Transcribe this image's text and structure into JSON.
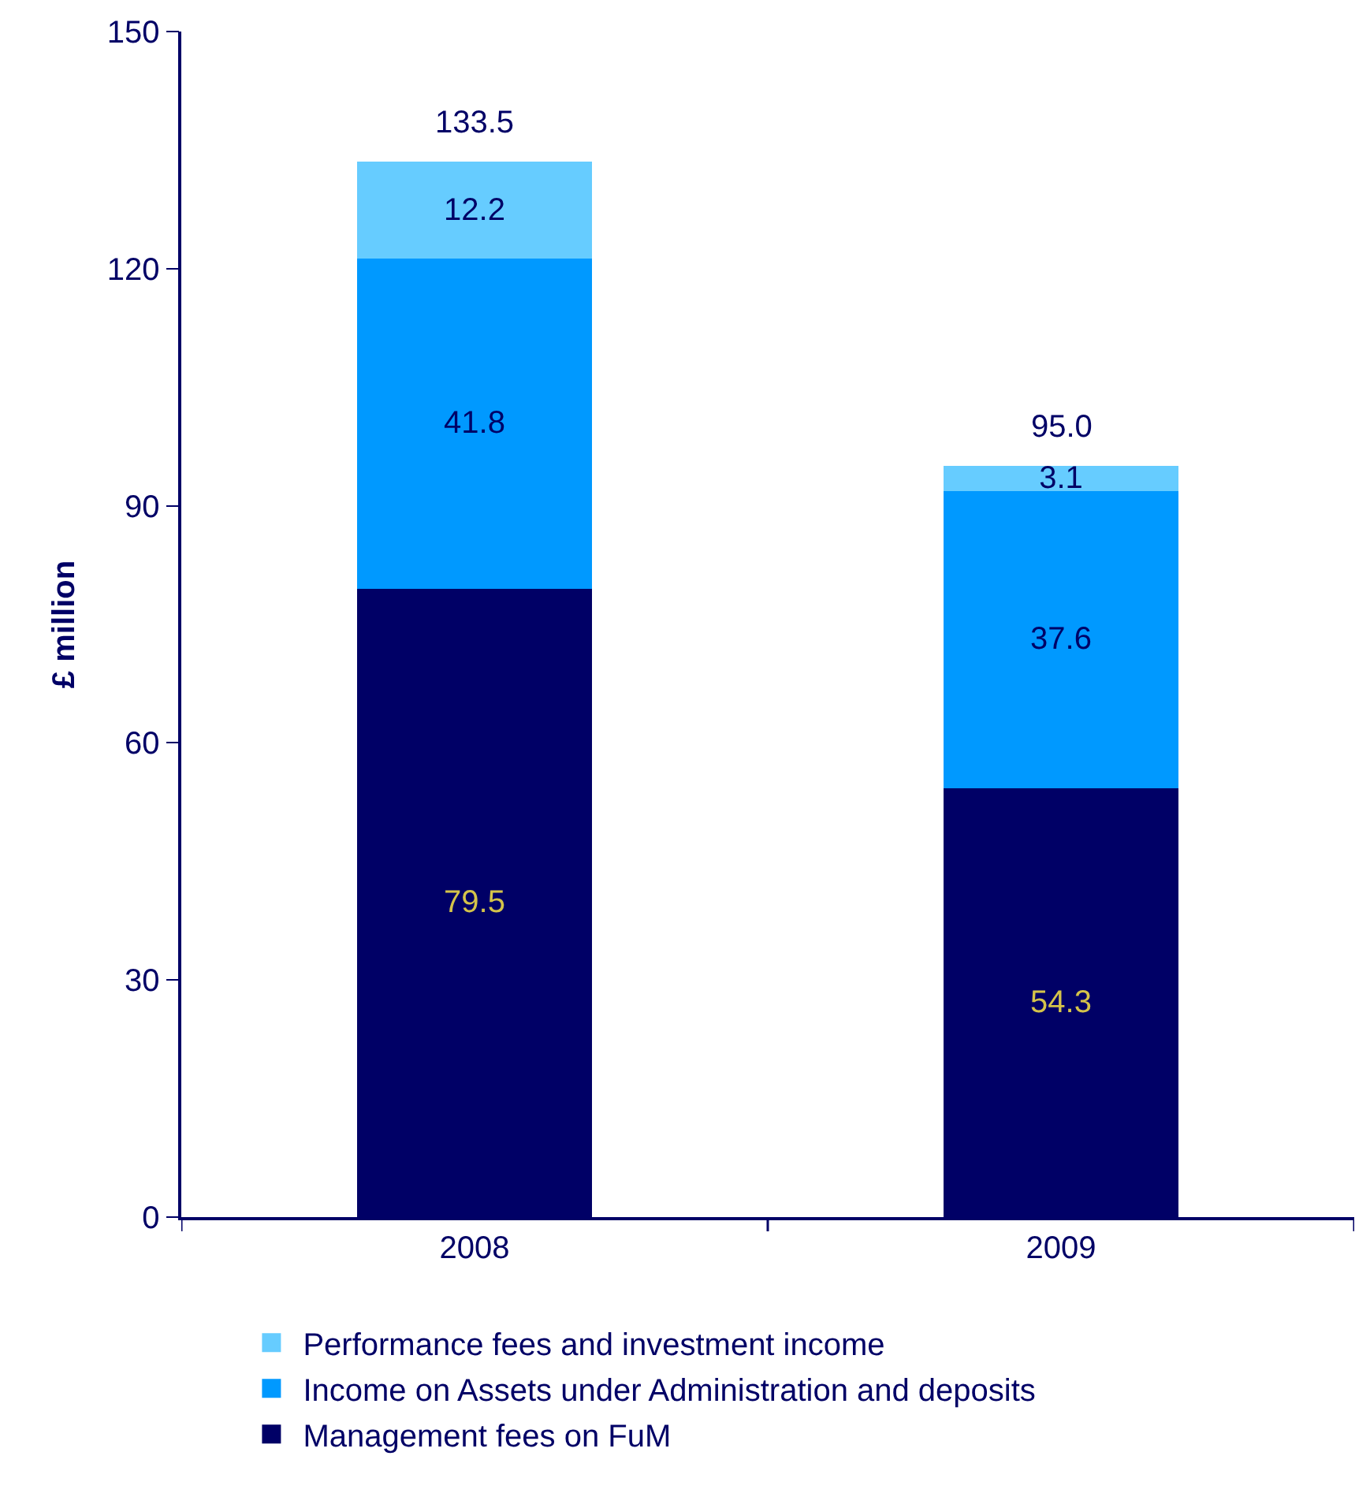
{
  "chart_data": {
    "type": "bar",
    "stacked": true,
    "ylabel": "£ million",
    "categories": [
      "2008",
      "2009"
    ],
    "series": [
      {
        "name": "Management fees on FuM",
        "color": "#000066",
        "values": [
          79.5,
          54.3
        ]
      },
      {
        "name": "Income on Assets under Administration and deposits",
        "color": "#0099ff",
        "values": [
          41.8,
          37.6
        ]
      },
      {
        "name": "Performance fees and investment income",
        "color": "#66ccff",
        "values": [
          12.2,
          3.1
        ]
      }
    ],
    "totals": [
      "133.5",
      "95.0"
    ],
    "data_labels": true,
    "ylim": [
      0,
      150
    ],
    "yticks": [
      0,
      30,
      60,
      90,
      120,
      150
    ],
    "legend": "bottom"
  }
}
